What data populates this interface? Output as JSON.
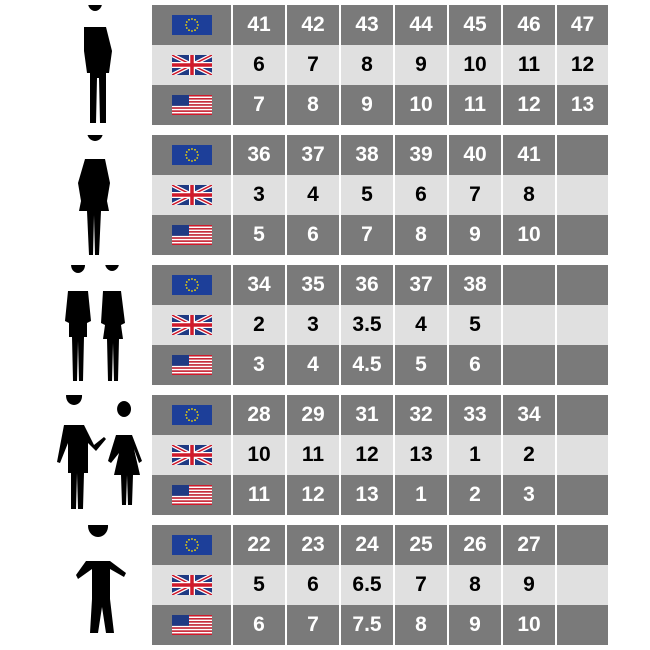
{
  "colors": {
    "dark_row": "#7a7a7a",
    "light_row": "#e0e0e0",
    "eu_blue": "#1d3f99",
    "eu_star": "#f5d800",
    "uk_red": "#cf1a2b",
    "uk_blue": "#1f3a83"
  },
  "row_flags": [
    "eu-flag-icon",
    "uk-flag-icon",
    "us-flag-icon"
  ],
  "groups": [
    {
      "silhouette": "man-icon",
      "eu": [
        "41",
        "42",
        "43",
        "44",
        "45",
        "46",
        "47"
      ],
      "uk": [
        "6",
        "7",
        "8",
        "9",
        "10",
        "11",
        "12"
      ],
      "us": [
        "7",
        "8",
        "9",
        "10",
        "11",
        "12",
        "13"
      ]
    },
    {
      "silhouette": "woman-icon",
      "eu": [
        "36",
        "37",
        "38",
        "39",
        "40",
        "41",
        ""
      ],
      "uk": [
        "3",
        "4",
        "5",
        "6",
        "7",
        "8",
        ""
      ],
      "us": [
        "5",
        "6",
        "7",
        "8",
        "9",
        "10",
        ""
      ]
    },
    {
      "silhouette": "teens-icon",
      "eu": [
        "34",
        "35",
        "36",
        "37",
        "38",
        "",
        ""
      ],
      "uk": [
        "2",
        "3",
        "3.5",
        "4",
        "5",
        "",
        ""
      ],
      "us": [
        "3",
        "4",
        "4.5",
        "5",
        "6",
        "",
        ""
      ]
    },
    {
      "silhouette": "children-icon",
      "eu": [
        "28",
        "29",
        "31",
        "32",
        "33",
        "34",
        ""
      ],
      "uk": [
        "10",
        "11",
        "12",
        "13",
        "1",
        "2",
        ""
      ],
      "us": [
        "11",
        "12",
        "13",
        "1",
        "2",
        "3",
        ""
      ]
    },
    {
      "silhouette": "toddler-icon",
      "eu": [
        "22",
        "23",
        "24",
        "25",
        "26",
        "27",
        ""
      ],
      "uk": [
        "5",
        "6",
        "6.5",
        "7",
        "8",
        "9",
        ""
      ],
      "us": [
        "6",
        "7",
        "7.5",
        "8",
        "9",
        "10",
        ""
      ]
    }
  ]
}
